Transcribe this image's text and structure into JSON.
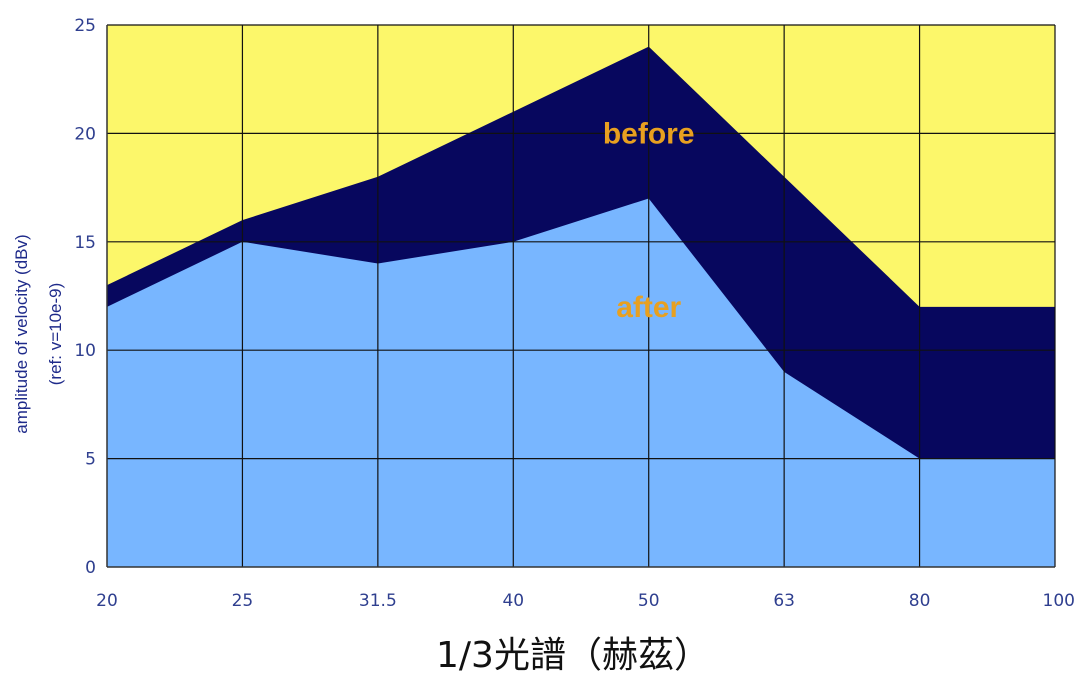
{
  "chart_data": {
    "type": "area",
    "title": "",
    "categories": [
      "20",
      "25",
      "31.5",
      "40",
      "50",
      "63",
      "80",
      "100"
    ],
    "series": [
      {
        "name": "before",
        "values": [
          13,
          16,
          18,
          21,
          24,
          18,
          12,
          12
        ],
        "color": "#07075e"
      },
      {
        "name": "after",
        "values": [
          12,
          15,
          14,
          15,
          17,
          9,
          5,
          5
        ],
        "color": "#78b6ff"
      }
    ],
    "xlabel": "1/3光譜（赫茲）",
    "ylabel": "amplitude of velocity (dBv)",
    "ylabel2": "(ref: v=10e-9)",
    "ylim": [
      0,
      25
    ],
    "yticks": [
      0,
      5,
      10,
      15,
      20,
      25
    ],
    "grid": true,
    "plot_background": "#fcf76a",
    "tick_color": "#2f3f8f",
    "label_color": "#e8a020"
  }
}
